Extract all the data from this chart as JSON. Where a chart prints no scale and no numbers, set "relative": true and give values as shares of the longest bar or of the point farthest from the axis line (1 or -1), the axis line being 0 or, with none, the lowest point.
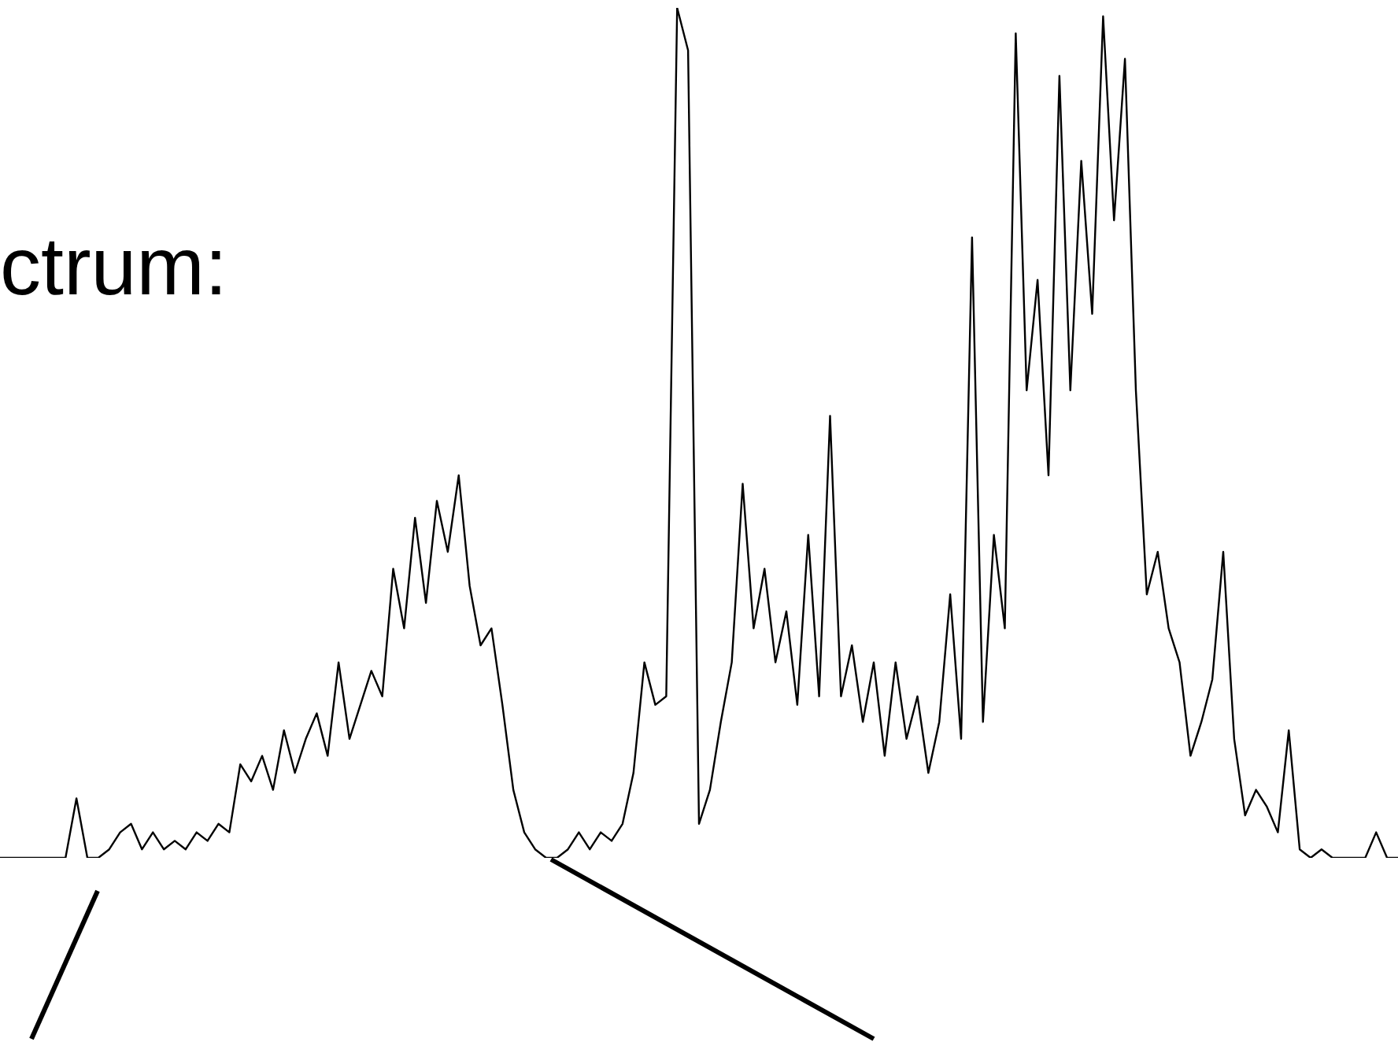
{
  "chart_data": {
    "type": "line",
    "title": "ctrum:",
    "relative": true,
    "marker": "none",
    "legend": false,
    "categories": [
      null,
      null,
      null,
      null,
      null,
      null,
      null,
      null,
      null,
      null,
      null,
      null,
      null,
      null,
      null,
      null,
      null,
      null,
      null,
      null,
      null,
      null,
      null,
      null,
      null,
      null,
      null,
      null,
      null,
      null,
      null,
      null,
      null,
      null,
      null,
      null,
      null,
      null,
      null,
      null,
      null,
      null,
      null,
      null,
      null,
      null,
      null,
      null,
      null,
      null,
      null,
      null,
      null,
      null,
      null,
      null,
      null,
      null,
      null,
      null,
      null,
      null,
      null,
      null,
      null,
      null,
      null,
      null,
      null,
      null,
      null,
      null,
      null,
      null,
      null,
      null,
      null,
      null,
      null,
      null,
      null,
      null,
      null,
      null,
      null,
      null,
      null,
      null,
      null,
      null,
      null,
      null,
      null,
      null,
      null,
      null,
      null,
      null,
      null,
      null,
      null,
      null,
      null,
      null,
      null,
      null,
      null,
      null,
      null,
      null,
      null,
      null,
      null,
      null,
      null,
      null,
      null,
      null,
      null,
      null,
      null,
      null,
      null,
      null,
      null,
      null,
      null,
      null,
      null
    ],
    "series": [
      {
        "color": "#000000",
        "values": [
          0,
          0,
          0,
          0,
          0,
          0,
          0,
          0.07,
          0,
          0,
          0.01,
          0.03,
          0.04,
          0.01,
          0.03,
          0.01,
          0.02,
          0.01,
          0.03,
          0.02,
          0.04,
          0.03,
          0.11,
          0.09,
          0.12,
          0.08,
          0.15,
          0.1,
          0.14,
          0.17,
          0.12,
          0.23,
          0.14,
          0.18,
          0.22,
          0.19,
          0.34,
          0.27,
          0.4,
          0.3,
          0.42,
          0.36,
          0.45,
          0.32,
          0.25,
          0.27,
          0.18,
          0.08,
          0.03,
          0.01,
          0,
          0,
          0.01,
          0.03,
          0.01,
          0.03,
          0.02,
          0.04,
          0.1,
          0.23,
          0.18,
          0.19,
          1.0,
          0.95,
          0.04,
          0.08,
          0.16,
          0.23,
          0.44,
          0.27,
          0.34,
          0.23,
          0.29,
          0.18,
          0.38,
          0.19,
          0.52,
          0.19,
          0.25,
          0.16,
          0.23,
          0.12,
          0.23,
          0.14,
          0.19,
          0.1,
          0.16,
          0.31,
          0.14,
          0.73,
          0.16,
          0.38,
          0.27,
          0.97,
          0.55,
          0.68,
          0.45,
          0.92,
          0.55,
          0.82,
          0.64,
          0.99,
          0.75,
          0.94,
          0.55,
          0.31,
          0.36,
          0.27,
          0.23,
          0.12,
          0.16,
          0.21,
          0.36,
          0.14,
          0.05,
          0.08,
          0.06,
          0.03,
          0.15,
          0.01,
          0,
          0.01,
          0,
          0,
          0,
          0,
          0.03,
          0,
          0
        ]
      }
    ]
  }
}
